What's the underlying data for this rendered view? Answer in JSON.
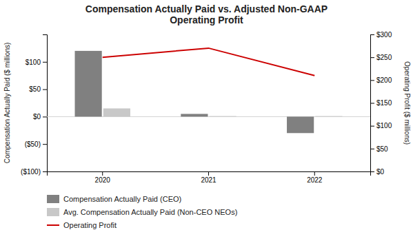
{
  "chart_data": {
    "type": "bar",
    "title": "Compensation Actually Paid vs. Adjusted Non-GAAP\nOperating Profit",
    "categories": [
      "2020",
      "2021",
      "2022"
    ],
    "series": [
      {
        "name": "Compensation Actually Paid (CEO)",
        "type": "bar",
        "color": "#808080",
        "values": [
          120,
          5,
          -30
        ]
      },
      {
        "name": "Avg. Compensation Actually Paid (Non-CEO NEOs)",
        "type": "bar",
        "color": "#c8c8c8",
        "values": [
          15,
          1,
          1
        ]
      },
      {
        "name": "Operating Profit",
        "type": "line",
        "axis": "y2",
        "color": "#cc0000",
        "values": [
          250,
          270,
          210
        ]
      }
    ],
    "ylabel": "Compensation Actually Paid ($ millions)",
    "y2label": "Operating Profit ($ millions)",
    "ylim": [
      -100,
      150
    ],
    "yticks": [
      {
        "value": -100,
        "label": "($100)"
      },
      {
        "value": -50,
        "label": "($50)"
      },
      {
        "value": 0,
        "label": "$0"
      },
      {
        "value": 50,
        "label": "$50"
      },
      {
        "value": 100,
        "label": "$100"
      }
    ],
    "y2lim": [
      0,
      300
    ],
    "y2ticks": [
      {
        "value": 0,
        "label": "$0"
      },
      {
        "value": 50,
        "label": "$50"
      },
      {
        "value": 100,
        "label": "$100"
      },
      {
        "value": 150,
        "label": "$150"
      },
      {
        "value": 200,
        "label": "$200"
      },
      {
        "value": 250,
        "label": "$250"
      },
      {
        "value": 300,
        "label": "$300"
      }
    ],
    "legend": "bottom"
  }
}
